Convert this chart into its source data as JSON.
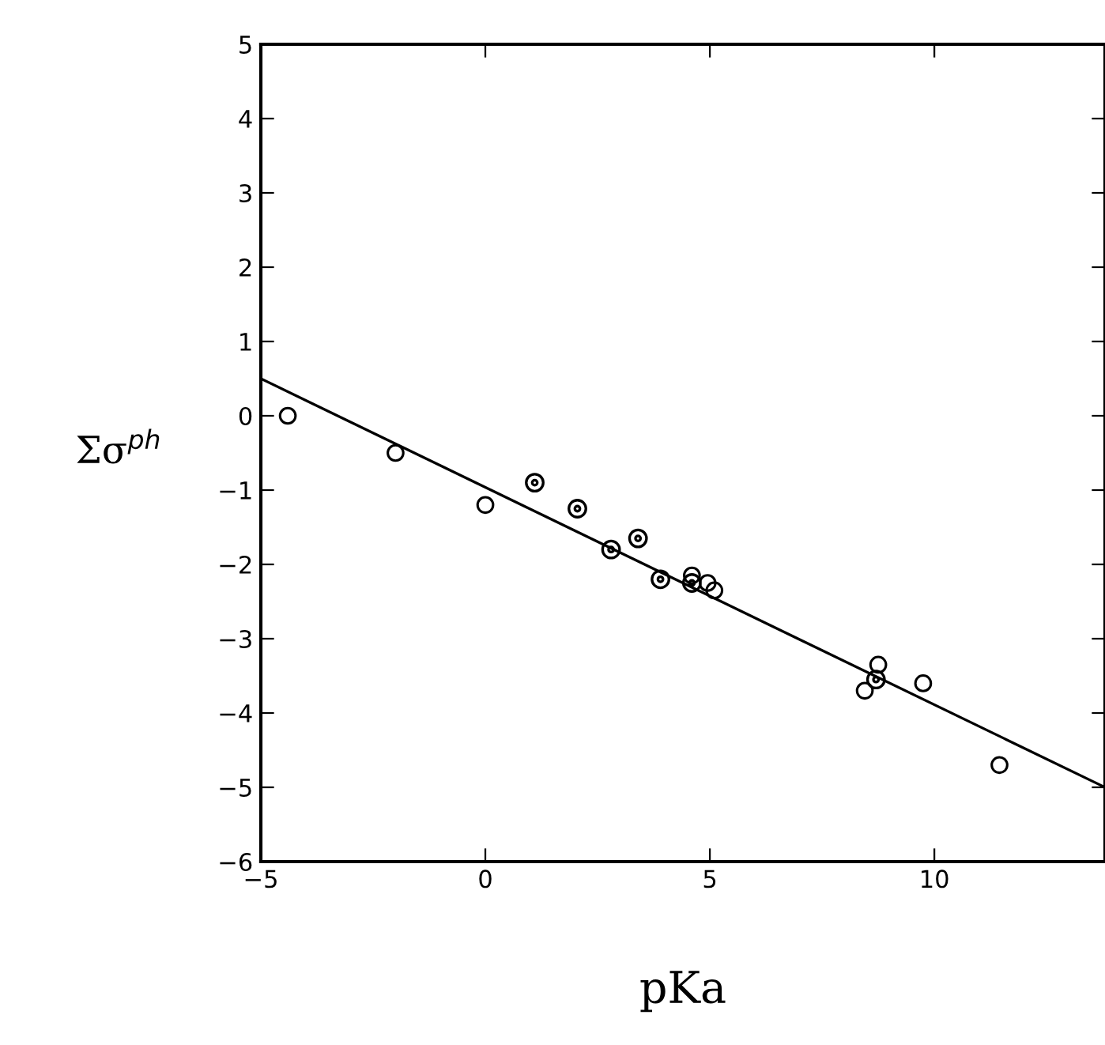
{
  "chart_data": {
    "type": "scatter",
    "xlabel": "pKa",
    "ylabel": "Σσ$^{ph}$",
    "xlim": [
      -5,
      13.8
    ],
    "ylim": [
      -6,
      5
    ],
    "xticks": [
      -5,
      0,
      5,
      10
    ],
    "yticks": [
      -6,
      -5,
      -4,
      -3,
      -2,
      -1,
      0,
      1,
      2,
      3,
      4,
      5
    ],
    "grid": false,
    "legend": false,
    "series": [
      {
        "color": "#000000",
        "marker": "circle",
        "x": [
          -4.4,
          -2.0,
          0.0,
          4.6,
          4.95,
          5.1,
          8.45,
          8.75,
          9.75,
          11.45
        ],
        "values": [
          0.0,
          -0.5,
          -1.2,
          -2.15,
          -2.25,
          -2.35,
          -3.7,
          -3.35,
          -3.6,
          -4.7
        ]
      },
      {
        "color": "#000000",
        "marker": "dotted_circle",
        "x": [
          1.1,
          2.05,
          2.8,
          3.4,
          3.9,
          4.6,
          8.7
        ],
        "values": [
          -0.9,
          -1.25,
          -1.8,
          -1.65,
          -2.2,
          -2.25,
          -3.55
        ]
      },
      {
        "type": "line",
        "color": "#000000",
        "marker": "none",
        "line_style": "solid",
        "x": [
          -5,
          13.8
        ],
        "values": [
          0.5,
          -5.0
        ]
      }
    ]
  }
}
